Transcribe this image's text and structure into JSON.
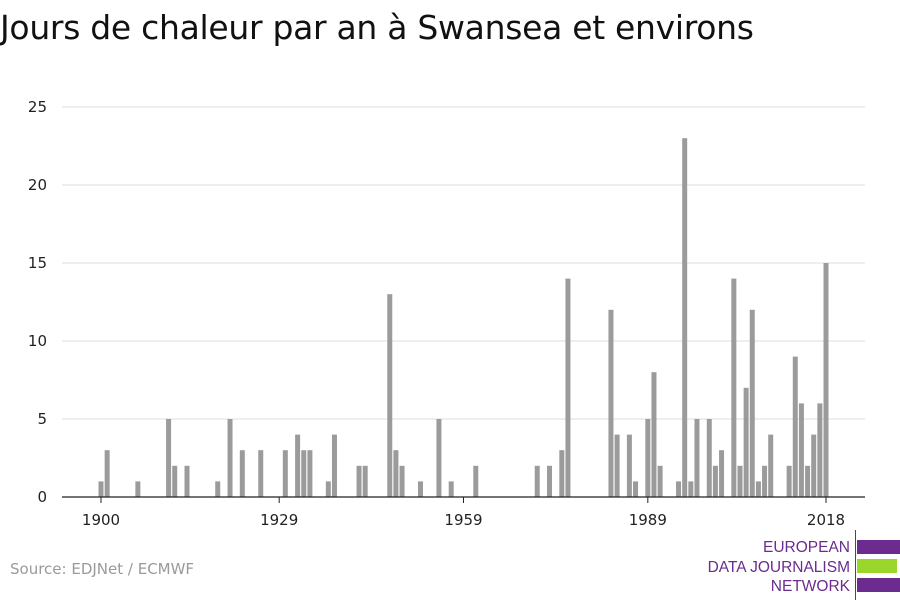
{
  "chart_data": {
    "type": "bar",
    "title": "Jours de chaleur par an à Swansea et environs",
    "xlabel": "",
    "ylabel": "",
    "xlim": [
      1900,
      2018
    ],
    "ylim": [
      0,
      25
    ],
    "yticks": [
      0,
      5,
      10,
      15,
      20,
      25
    ],
    "xticks": [
      1900,
      1929,
      1959,
      1989,
      2018
    ],
    "grid": true,
    "bar_color": "#9b9b9b",
    "points": [
      {
        "year": 1900,
        "value": 1
      },
      {
        "year": 1901,
        "value": 3
      },
      {
        "year": 1906,
        "value": 1
      },
      {
        "year": 1911,
        "value": 5
      },
      {
        "year": 1912,
        "value": 2
      },
      {
        "year": 1914,
        "value": 2
      },
      {
        "year": 1919,
        "value": 1
      },
      {
        "year": 1921,
        "value": 5
      },
      {
        "year": 1923,
        "value": 3
      },
      {
        "year": 1926,
        "value": 3
      },
      {
        "year": 1930,
        "value": 3
      },
      {
        "year": 1932,
        "value": 4
      },
      {
        "year": 1933,
        "value": 3
      },
      {
        "year": 1934,
        "value": 3
      },
      {
        "year": 1937,
        "value": 1
      },
      {
        "year": 1938,
        "value": 4
      },
      {
        "year": 1942,
        "value": 2
      },
      {
        "year": 1943,
        "value": 2
      },
      {
        "year": 1947,
        "value": 13
      },
      {
        "year": 1948,
        "value": 3
      },
      {
        "year": 1949,
        "value": 2
      },
      {
        "year": 1952,
        "value": 1
      },
      {
        "year": 1955,
        "value": 5
      },
      {
        "year": 1957,
        "value": 1
      },
      {
        "year": 1961,
        "value": 2
      },
      {
        "year": 1971,
        "value": 2
      },
      {
        "year": 1973,
        "value": 2
      },
      {
        "year": 1975,
        "value": 3
      },
      {
        "year": 1976,
        "value": 14
      },
      {
        "year": 1983,
        "value": 12
      },
      {
        "year": 1984,
        "value": 4
      },
      {
        "year": 1986,
        "value": 4
      },
      {
        "year": 1987,
        "value": 1
      },
      {
        "year": 1989,
        "value": 5
      },
      {
        "year": 1990,
        "value": 8
      },
      {
        "year": 1991,
        "value": 2
      },
      {
        "year": 1994,
        "value": 1
      },
      {
        "year": 1995,
        "value": 23
      },
      {
        "year": 1996,
        "value": 1
      },
      {
        "year": 1997,
        "value": 5
      },
      {
        "year": 1999,
        "value": 5
      },
      {
        "year": 2000,
        "value": 2
      },
      {
        "year": 2001,
        "value": 3
      },
      {
        "year": 2003,
        "value": 14
      },
      {
        "year": 2004,
        "value": 2
      },
      {
        "year": 2005,
        "value": 7
      },
      {
        "year": 2006,
        "value": 12
      },
      {
        "year": 2007,
        "value": 1
      },
      {
        "year": 2008,
        "value": 2
      },
      {
        "year": 2009,
        "value": 4
      },
      {
        "year": 2012,
        "value": 2
      },
      {
        "year": 2013,
        "value": 9
      },
      {
        "year": 2014,
        "value": 6
      },
      {
        "year": 2015,
        "value": 2
      },
      {
        "year": 2016,
        "value": 4
      },
      {
        "year": 2017,
        "value": 6
      },
      {
        "year": 2018,
        "value": 15
      }
    ]
  },
  "source": "Source: EDJNet / ECMWF",
  "logo": {
    "lines": [
      "EUROPEAN",
      "DATA JOURNALISM",
      "NETWORK"
    ],
    "colors": {
      "purple": "#6c2b8f",
      "green": "#9bd62d"
    }
  }
}
